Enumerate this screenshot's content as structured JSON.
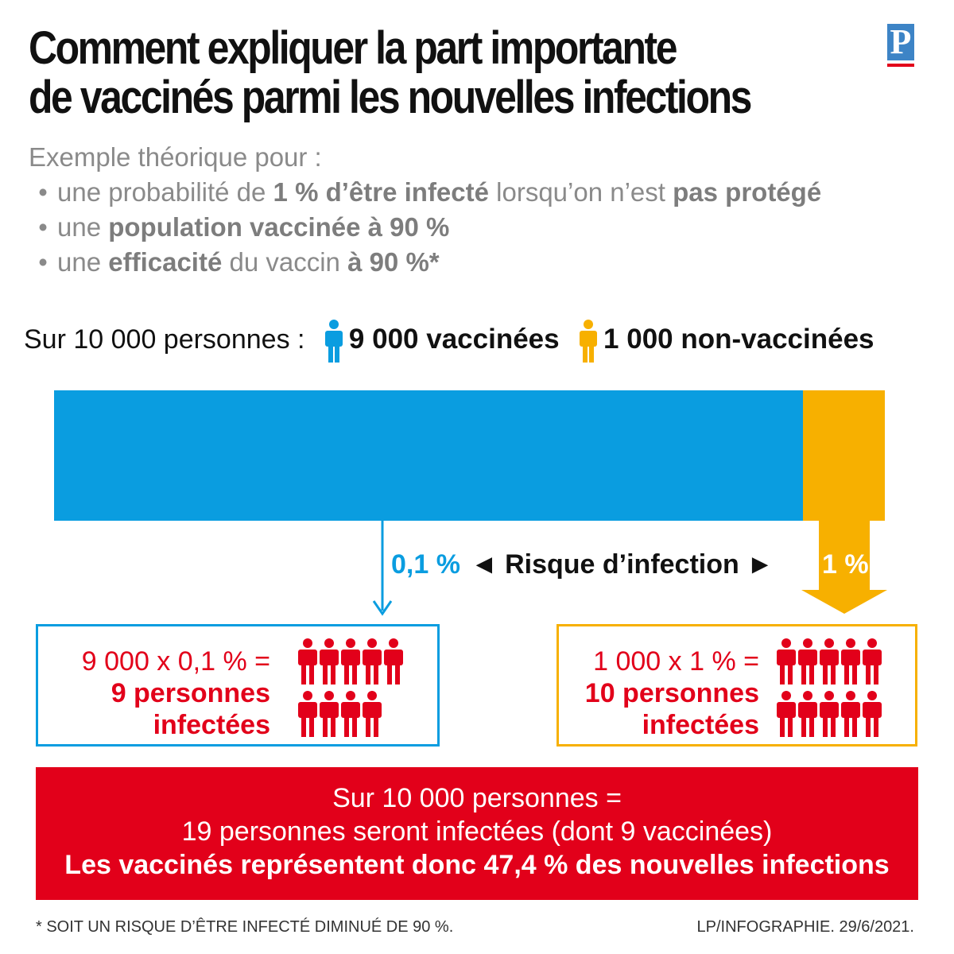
{
  "title": {
    "line1": "Comment expliquer la part importante",
    "line2": "de vaccinés parmi les nouvelles infections"
  },
  "logo": {
    "letter": "P"
  },
  "subtitle": {
    "intro": "Exemple théorique pour :",
    "bullet1": {
      "a": "une probabilité de ",
      "b": "1 % d’être infecté",
      "c": " lorsqu’on n’est ",
      "d": "pas protégé"
    },
    "bullet2": {
      "a": "une ",
      "b": "population vaccinée à 90 %"
    },
    "bullet3": {
      "a": "une ",
      "b": "efficacité",
      "c": " du vaccin ",
      "d": "à 90 %*"
    }
  },
  "population": {
    "label": "Sur 10 000 personnes :",
    "vaccinated": "9 000 vaccinées",
    "unvaccinated": "1 000 non-vaccinées",
    "vaccinated_share": 0.9,
    "unvaccinated_share": 0.1
  },
  "risk": {
    "vaccinated_pct": "0,1 %",
    "label": "◄ Risque d’infection ►",
    "unvaccinated_pct": "1 %"
  },
  "vaccinated_box": {
    "equation": "9 000 x 0,1 % =",
    "result_line1": "9 personnes",
    "result_line2": "infectées",
    "infected_count": 9
  },
  "unvaccinated_box": {
    "equation": "1 000 x 1 % =",
    "result_line1": "10 personnes",
    "result_line2": "infectées",
    "infected_count": 10
  },
  "summary": {
    "line1": "Sur 10 000 personnes =",
    "line2": "19 personnes seront infectées (dont 9 vaccinées)",
    "line3": "Les vaccinés représentent donc 47,4 % des nouvelles infections"
  },
  "footer": {
    "note": "* SOIT UN RISQUE D’ÊTRE INFECTÉ DIMINUÉ DE 90 %.",
    "credit": "LP/INFOGRAPHIE.  29/6/2021."
  },
  "colors": {
    "vaccinated": "#0a9de0",
    "unvaccinated": "#f7b000",
    "infected": "#e2001a",
    "logo": "#3d84c6"
  }
}
